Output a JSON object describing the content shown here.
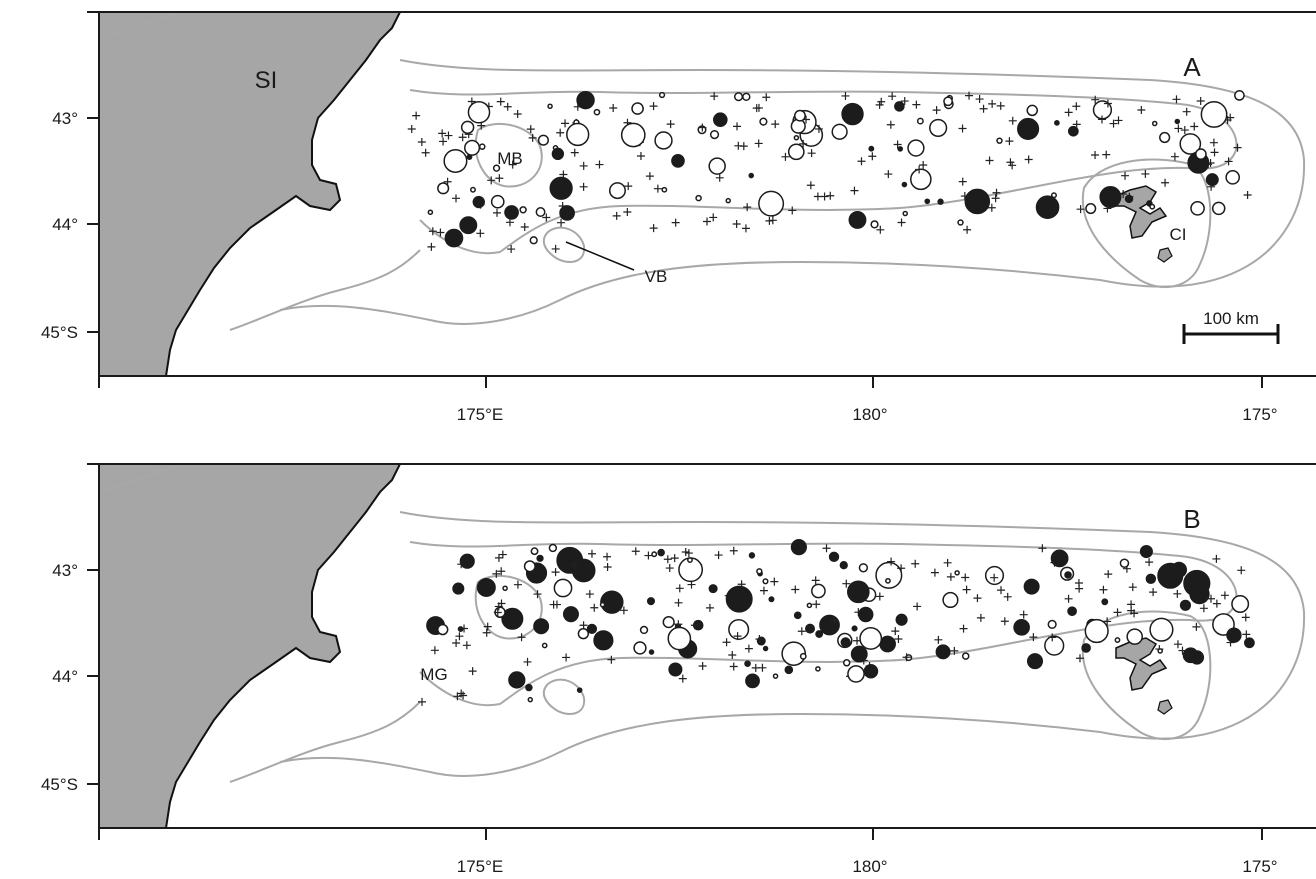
{
  "panels": [
    {
      "letter": "A",
      "lat_ticks": [
        "43°",
        "44°",
        "45°S"
      ],
      "lon_ticks": [
        "175°E",
        "180°",
        "175°"
      ],
      "labels": {
        "south_island": "SI",
        "mernoo_bank": "MB",
        "veryan_bank": "VB",
        "chatham_islands": "CI"
      },
      "scale_bar": "100 km",
      "point_legend_note": ""
    },
    {
      "letter": "B",
      "lat_ticks": [
        "43°",
        "44°",
        "45°S"
      ],
      "lon_ticks": [
        "175°E",
        "180°",
        "175°"
      ],
      "labels": {
        "mernoo_gap": "MG"
      }
    }
  ],
  "colors": {
    "land": "#a6a6a6",
    "contour": "#a8a8a8",
    "filled_marker": "#1c1c1c",
    "frame": "#1a1a1a"
  },
  "icon_names": [
    "plus-marker-icon",
    "open-circle-marker-icon",
    "filled-circle-marker-icon"
  ]
}
